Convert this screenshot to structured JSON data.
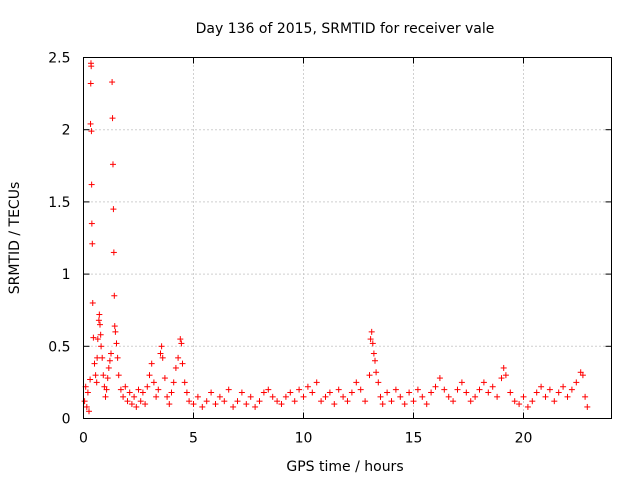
{
  "chart_data": {
    "type": "scatter",
    "title": "Day 136 of 2015, SRMTID for receiver vale",
    "xlabel": "GPS time / hours",
    "ylabel": "SRMTID / TECUs",
    "xlim": [
      0,
      24
    ],
    "ylim": [
      0,
      2.5
    ],
    "xticks": [
      0,
      5,
      10,
      15,
      20
    ],
    "xtick_labels": [
      "0",
      "5",
      "10",
      "15",
      "20"
    ],
    "yticks": [
      0,
      0.5,
      1,
      1.5,
      2,
      2.5
    ],
    "ytick_labels": [
      "0",
      "0.5",
      "1",
      "1.5",
      "2",
      "2.5"
    ],
    "grid": true,
    "marker": "+",
    "color": "#ff0000",
    "series": [
      {
        "name": "SRMTID",
        "points": [
          [
            0.05,
            0.12
          ],
          [
            0.1,
            0.22
          ],
          [
            0.15,
            0.08
          ],
          [
            0.2,
            0.18
          ],
          [
            0.25,
            0.05
          ],
          [
            0.3,
            0.27
          ],
          [
            0.32,
            2.04
          ],
          [
            0.33,
            2.32
          ],
          [
            0.34,
            2.46
          ],
          [
            0.35,
            2.44
          ],
          [
            0.36,
            1.99
          ],
          [
            0.37,
            1.62
          ],
          [
            0.38,
            1.35
          ],
          [
            0.4,
            1.21
          ],
          [
            0.42,
            0.8
          ],
          [
            0.45,
            0.56
          ],
          [
            0.5,
            0.38
          ],
          [
            0.55,
            0.3
          ],
          [
            0.6,
            0.25
          ],
          [
            0.62,
            0.42
          ],
          [
            0.65,
            0.55
          ],
          [
            0.7,
            0.68
          ],
          [
            0.72,
            0.72
          ],
          [
            0.75,
            0.65
          ],
          [
            0.78,
            0.58
          ],
          [
            0.8,
            0.5
          ],
          [
            0.85,
            0.42
          ],
          [
            0.9,
            0.3
          ],
          [
            0.95,
            0.22
          ],
          [
            1.0,
            0.15
          ],
          [
            1.05,
            0.2
          ],
          [
            1.1,
            0.28
          ],
          [
            1.15,
            0.35
          ],
          [
            1.2,
            0.4
          ],
          [
            1.25,
            0.45
          ],
          [
            1.3,
            2.33
          ],
          [
            1.32,
            2.08
          ],
          [
            1.34,
            1.76
          ],
          [
            1.36,
            1.45
          ],
          [
            1.38,
            1.15
          ],
          [
            1.4,
            0.85
          ],
          [
            1.42,
            0.64
          ],
          [
            1.45,
            0.6
          ],
          [
            1.5,
            0.52
          ],
          [
            1.55,
            0.42
          ],
          [
            1.6,
            0.3
          ],
          [
            1.7,
            0.2
          ],
          [
            1.8,
            0.15
          ],
          [
            1.9,
            0.22
          ],
          [
            2.0,
            0.12
          ],
          [
            2.1,
            0.18
          ],
          [
            2.2,
            0.1
          ],
          [
            2.3,
            0.15
          ],
          [
            2.4,
            0.08
          ],
          [
            2.5,
            0.2
          ],
          [
            2.6,
            0.12
          ],
          [
            2.7,
            0.18
          ],
          [
            2.8,
            0.1
          ],
          [
            2.9,
            0.22
          ],
          [
            3.0,
            0.3
          ],
          [
            3.1,
            0.38
          ],
          [
            3.2,
            0.25
          ],
          [
            3.3,
            0.15
          ],
          [
            3.4,
            0.2
          ],
          [
            3.5,
            0.45
          ],
          [
            3.55,
            0.5
          ],
          [
            3.6,
            0.42
          ],
          [
            3.7,
            0.28
          ],
          [
            3.8,
            0.15
          ],
          [
            3.9,
            0.1
          ],
          [
            4.0,
            0.18
          ],
          [
            4.1,
            0.25
          ],
          [
            4.2,
            0.35
          ],
          [
            4.3,
            0.42
          ],
          [
            4.4,
            0.55
          ],
          [
            4.45,
            0.52
          ],
          [
            4.5,
            0.38
          ],
          [
            4.6,
            0.25
          ],
          [
            4.7,
            0.18
          ],
          [
            4.8,
            0.12
          ],
          [
            5.0,
            0.1
          ],
          [
            5.2,
            0.15
          ],
          [
            5.4,
            0.08
          ],
          [
            5.6,
            0.12
          ],
          [
            5.8,
            0.18
          ],
          [
            6.0,
            0.1
          ],
          [
            6.2,
            0.15
          ],
          [
            6.4,
            0.12
          ],
          [
            6.6,
            0.2
          ],
          [
            6.8,
            0.08
          ],
          [
            7.0,
            0.12
          ],
          [
            7.2,
            0.18
          ],
          [
            7.4,
            0.1
          ],
          [
            7.6,
            0.15
          ],
          [
            7.8,
            0.08
          ],
          [
            8.0,
            0.12
          ],
          [
            8.2,
            0.18
          ],
          [
            8.4,
            0.2
          ],
          [
            8.6,
            0.15
          ],
          [
            8.8,
            0.12
          ],
          [
            9.0,
            0.1
          ],
          [
            9.2,
            0.15
          ],
          [
            9.4,
            0.18
          ],
          [
            9.6,
            0.12
          ],
          [
            9.8,
            0.2
          ],
          [
            10.0,
            0.15
          ],
          [
            10.2,
            0.22
          ],
          [
            10.4,
            0.18
          ],
          [
            10.6,
            0.25
          ],
          [
            10.8,
            0.12
          ],
          [
            11.0,
            0.15
          ],
          [
            11.2,
            0.18
          ],
          [
            11.4,
            0.1
          ],
          [
            11.6,
            0.2
          ],
          [
            11.8,
            0.15
          ],
          [
            12.0,
            0.12
          ],
          [
            12.2,
            0.18
          ],
          [
            12.4,
            0.25
          ],
          [
            12.6,
            0.2
          ],
          [
            12.8,
            0.12
          ],
          [
            13.0,
            0.3
          ],
          [
            13.05,
            0.55
          ],
          [
            13.1,
            0.6
          ],
          [
            13.15,
            0.52
          ],
          [
            13.2,
            0.45
          ],
          [
            13.25,
            0.4
          ],
          [
            13.3,
            0.32
          ],
          [
            13.4,
            0.25
          ],
          [
            13.5,
            0.15
          ],
          [
            13.6,
            0.1
          ],
          [
            13.8,
            0.18
          ],
          [
            14.0,
            0.12
          ],
          [
            14.2,
            0.2
          ],
          [
            14.4,
            0.15
          ],
          [
            14.6,
            0.1
          ],
          [
            14.8,
            0.18
          ],
          [
            15.0,
            0.12
          ],
          [
            15.2,
            0.2
          ],
          [
            15.4,
            0.15
          ],
          [
            15.6,
            0.1
          ],
          [
            15.8,
            0.18
          ],
          [
            16.0,
            0.22
          ],
          [
            16.2,
            0.28
          ],
          [
            16.4,
            0.2
          ],
          [
            16.6,
            0.15
          ],
          [
            16.8,
            0.12
          ],
          [
            17.0,
            0.2
          ],
          [
            17.2,
            0.25
          ],
          [
            17.4,
            0.18
          ],
          [
            17.6,
            0.12
          ],
          [
            17.8,
            0.15
          ],
          [
            18.0,
            0.2
          ],
          [
            18.2,
            0.25
          ],
          [
            18.4,
            0.18
          ],
          [
            18.6,
            0.22
          ],
          [
            18.8,
            0.15
          ],
          [
            19.0,
            0.28
          ],
          [
            19.1,
            0.35
          ],
          [
            19.2,
            0.3
          ],
          [
            19.4,
            0.18
          ],
          [
            19.6,
            0.12
          ],
          [
            19.8,
            0.1
          ],
          [
            20.0,
            0.15
          ],
          [
            20.2,
            0.08
          ],
          [
            20.4,
            0.12
          ],
          [
            20.6,
            0.18
          ],
          [
            20.8,
            0.22
          ],
          [
            21.0,
            0.15
          ],
          [
            21.2,
            0.2
          ],
          [
            21.4,
            0.12
          ],
          [
            21.6,
            0.18
          ],
          [
            21.8,
            0.22
          ],
          [
            22.0,
            0.15
          ],
          [
            22.2,
            0.2
          ],
          [
            22.4,
            0.25
          ],
          [
            22.6,
            0.32
          ],
          [
            22.7,
            0.3
          ],
          [
            22.8,
            0.15
          ],
          [
            22.9,
            0.08
          ]
        ]
      }
    ]
  }
}
